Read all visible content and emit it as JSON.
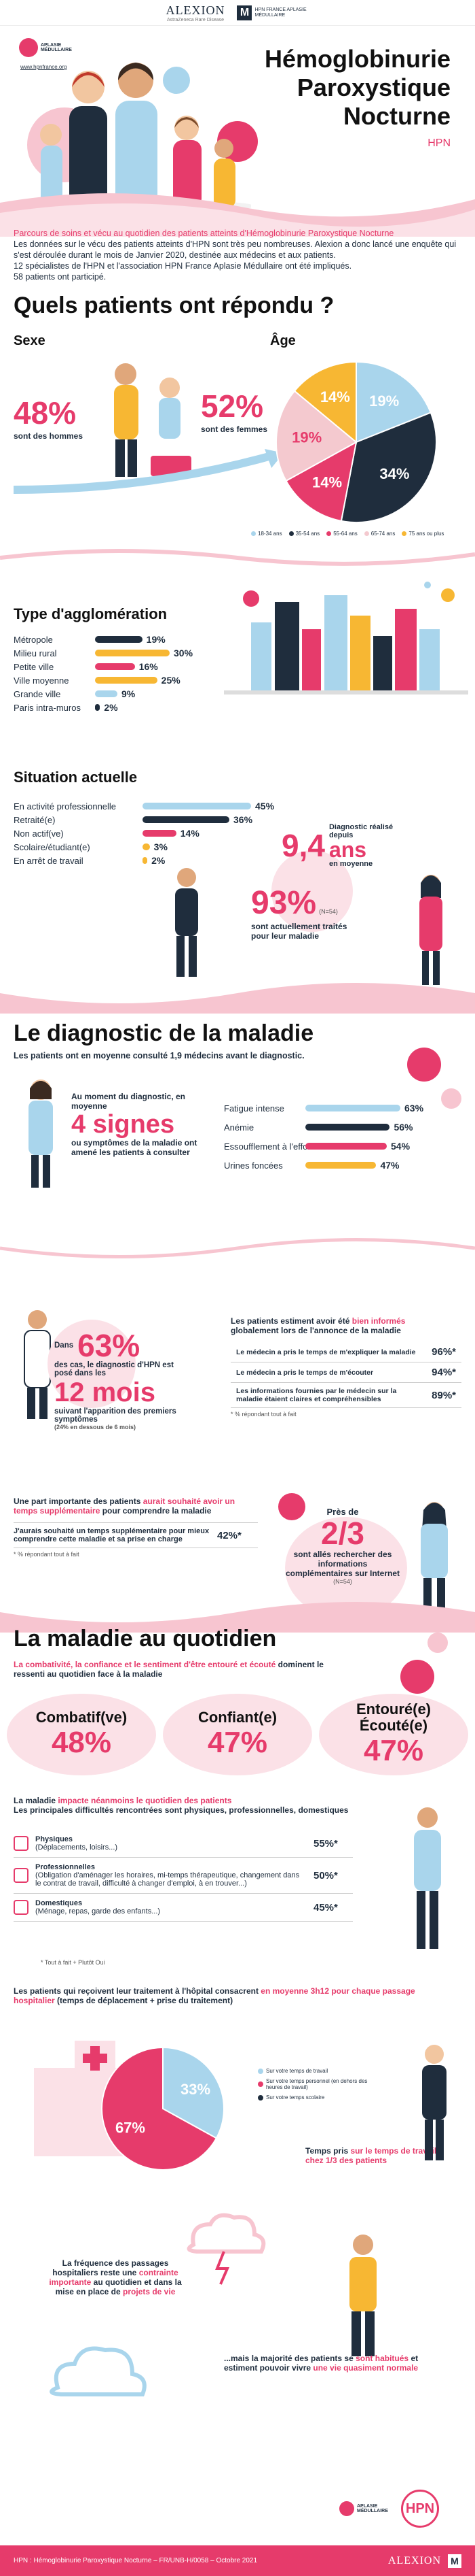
{
  "header": {
    "alexion": "ALEXION",
    "alexion_sub": "AstraZeneca Rare Disease",
    "hpn_assoc": "HPN FRANCE APLASIE MÉDULLAIRE",
    "aplasie": "APLASIE MÉDULLAIRE",
    "website": "www.hpnfrance.org"
  },
  "title": {
    "line1": "Hémoglobinurie",
    "line2": "Paroxystique",
    "line3": "Nocturne",
    "abbr": "HPN"
  },
  "intro": {
    "lead": "Parcours de soins et vécu au quotidien des patients atteints d'Hémoglobinurie Paroxystique Nocturne",
    "p1": "Les données sur le vécu des patients atteints d'HPN sont très peu nombreuses. Alexion a donc lancé une enquête qui s'est déroulée durant le mois de Janvier 2020, destinée aux médecins et aux patients.",
    "p2": "12 spécialistes de l'HPN et l'association HPN France Aplasie Médullaire ont été impliqués.",
    "p3": "58 patients ont participé."
  },
  "section1": {
    "title": "Quels patients ont répondu ?",
    "sexe_label": "Sexe",
    "age_label": "Âge",
    "men_pct": "48%",
    "men_text": "sont des hommes",
    "women_pct": "52%",
    "women_text": "sont des femmes"
  },
  "chart_data": {
    "type": "pie",
    "title": "Âge",
    "categories": [
      "18-34 ans",
      "35-54 ans",
      "55-64 ans",
      "65-74 ans",
      "75 ans ou plus"
    ],
    "values": [
      19,
      34,
      14,
      19,
      14
    ],
    "colors": [
      "#a9d5ec",
      "#1f2d3d",
      "#e63b6b",
      "#f4c9cf",
      "#f7b733"
    ]
  },
  "agglo": {
    "title": "Type d'agglomération",
    "rows": [
      {
        "label": "Métropole",
        "value": 19,
        "text": "19%"
      },
      {
        "label": "Milieu rural",
        "value": 30,
        "text": "30%"
      },
      {
        "label": "Petite ville",
        "value": 16,
        "text": "16%"
      },
      {
        "label": "Ville moyenne",
        "value": 25,
        "text": "25%"
      },
      {
        "label": "Grande ville",
        "value": 9,
        "text": "9%"
      },
      {
        "label": "Paris intra-muros",
        "value": 2,
        "text": "2%"
      }
    ],
    "colors": [
      "#1f2d3d",
      "#f7b733",
      "#e63b6b",
      "#f7b733",
      "#a9d5ec",
      "#1f2d3d"
    ]
  },
  "situation": {
    "title": "Situation actuelle",
    "rows": [
      {
        "label": "En activité professionnelle",
        "value": 45,
        "text": "45%"
      },
      {
        "label": "Retraité(e)",
        "value": 36,
        "text": "36%"
      },
      {
        "label": "Non actif(ve)",
        "value": 14,
        "text": "14%"
      },
      {
        "label": "Scolaire/étudiant(e)",
        "value": 3,
        "text": "3%"
      },
      {
        "label": "En arrêt de travail",
        "value": 2,
        "text": "2%"
      }
    ],
    "colors": [
      "#a9d5ec",
      "#1f2d3d",
      "#e63b6b",
      "#f7b733",
      "#f7b733"
    ],
    "diag_text": "Diagnostic réalisé depuis",
    "diag_value": "9,4",
    "diag_unit": "ans",
    "diag_sub": "en moyenne",
    "treated_pct": "93%",
    "treated_note": "(N=54)",
    "treated_text": "sont actuellement traités pour leur maladie"
  },
  "section2": {
    "title": "Le diagnostic de la maladie",
    "subtitle": "Les patients ont en moyenne consulté 1,9 médecins avant le diagnostic.",
    "signs_pre": "Au moment du diagnostic, en moyenne",
    "signs_value": "4 signes",
    "signs_post": "ou symptômes de la maladie ont amené les patients à consulter",
    "symptoms": [
      {
        "label": "Fatigue intense",
        "value": 63,
        "text": "63%"
      },
      {
        "label": "Anémie",
        "value": 56,
        "text": "56%"
      },
      {
        "label": "Essoufflement à l'effort",
        "value": 54,
        "text": "54%"
      },
      {
        "label": "Urines foncées",
        "value": 47,
        "text": "47%"
      }
    ],
    "symptom_colors": [
      "#a9d5ec",
      "#1f2d3d",
      "#e63b6b",
      "#f7b733"
    ],
    "dans": "Dans",
    "pct63": "63%",
    "pct63_text": "des cas, le diagnostic d'HPN est posé dans les",
    "months": "12 mois",
    "months_text": "suivant l'apparition des premiers symptômes",
    "months_note": "(24% en dessous de 6 mois)",
    "informed_pre": "Les patients estiment avoir été",
    "informed_hl": "bien informés",
    "informed_post": "globalement lors de l'annonce de la maladie",
    "informed_rows": [
      {
        "label": "Le médecin a pris le temps de m'expliquer la maladie",
        "text": "96%*"
      },
      {
        "label": "Le médecin a pris le temps de m'écouter",
        "text": "94%*"
      },
      {
        "label": "Les informations fournies par le médecin sur la maladie étaient claires et compréhensibles",
        "text": "89%*"
      }
    ],
    "informed_note": "* % répondant tout à fait",
    "wish_pre": "Une part importante des patients",
    "wish_hl": "aurait souhaité avoir un temps supplémentaire",
    "wish_post": "pour comprendre la maladie",
    "wish_row": "J'aurais souhaité un temps supplémentaire pour mieux comprendre cette maladie et sa prise en charge",
    "wish_pct": "42%*",
    "wish_note": "* % répondant tout à fait",
    "near": "Près de",
    "frac": "2/3",
    "frac_text": "sont allés rechercher des informations complémentaires sur Internet",
    "frac_note": "(N=54)"
  },
  "section3": {
    "title": "La maladie au quotidien",
    "intro_hl": "La combativité, la confiance et le sentiment d'être entouré et écouté",
    "intro_post": "dominent le ressenti au quotidien face à la maladie",
    "feelings": [
      {
        "label": "Combatif(ve)",
        "text": "48%"
      },
      {
        "label": "Confiant(e)",
        "text": "47%"
      },
      {
        "label": "Entouré(e) Écouté(e)",
        "text": "47%"
      }
    ],
    "impact_pre": "La maladie",
    "impact_hl": "impacte néanmoins le quotidien des patients",
    "impact_post": "Les principales difficultés rencontrées sont physiques, professionnelles, domestiques",
    "difficulties": [
      {
        "title": "Physiques",
        "detail": "(Déplacements, loisirs...)",
        "text": "55%*"
      },
      {
        "title": "Professionnelles",
        "detail": "(Obligation d'aménager les horaires, mi-temps thérapeutique, changement dans le contrat de travail, difficulté à changer d'emploi, à en trouver...)",
        "text": "50%*"
      },
      {
        "title": "Domestiques",
        "detail": "(Ménage, repas, garde des enfants...)",
        "text": "45%*"
      }
    ],
    "diff_note": "* Tout à fait + Plutôt Oui",
    "hosp_pre": "Les patients qui reçoivent leur traitement à l'hôpital consacrent",
    "hosp_hl": "en moyenne 3h12 pour chaque passage hospitalier",
    "hosp_post": "(temps de déplacement + prise du traitement)",
    "pie2_legend": [
      "Sur votre temps de travail",
      "Sur votre temps personnel (en dehors des heures de travail)",
      "Sur votre temps scolaire"
    ],
    "pie2_values": [
      33,
      67,
      0
    ],
    "pie2_texts": [
      "33%",
      "67%"
    ],
    "work_pre": "Temps pris",
    "work_hl": "sur le temps de travail",
    "work_post": "chez 1/3 des patients",
    "freq_text1": "La fréquence des passages hospitaliers reste une",
    "freq_hl": "contrainte importante",
    "freq_text2": "au quotidien et dans la mise en place de",
    "freq_hl2": "projets de vie",
    "habit_pre": "...mais la majorité des patients se",
    "habit_hl": "sont habitués",
    "habit_mid": "et estiment pouvoir vivre",
    "habit_hl2": "une vie quasiment normale"
  },
  "footer": {
    "text": "HPN : Hémoglobinurie Paroxystique Nocturne – FR/UNB-H/0058 – Octobre 2021",
    "alexion": "ALEXION"
  }
}
